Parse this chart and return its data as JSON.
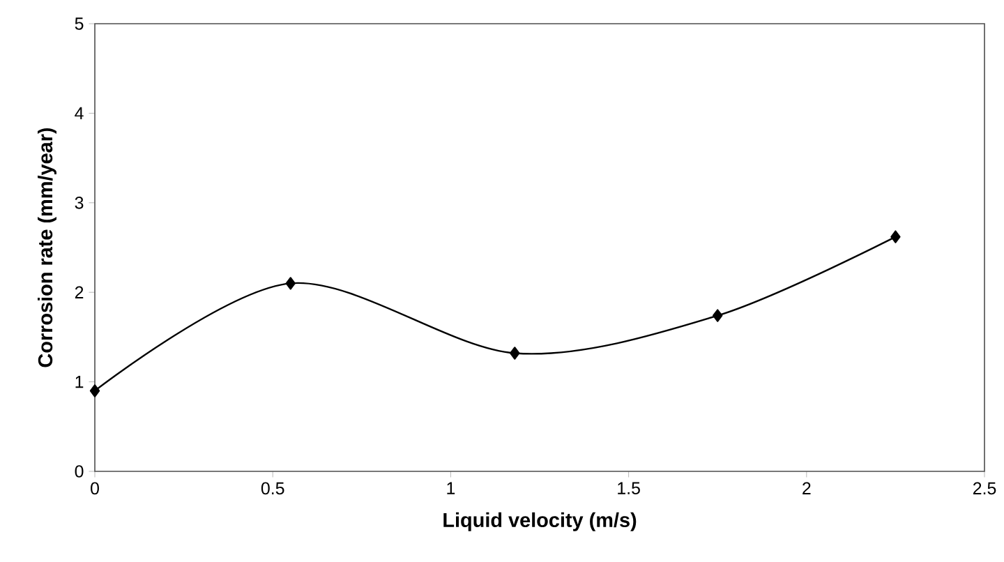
{
  "chart_data": {
    "type": "line",
    "xlabel": "Liquid velocity (m/s)",
    "ylabel": "Corrosion rate (mm/year)",
    "x": [
      0,
      0.55,
      1.18,
      1.75,
      2.25
    ],
    "series": [
      {
        "color": "#000000",
        "values": [
          0.9,
          2.1,
          1.32,
          1.74,
          2.62
        ]
      }
    ],
    "xlim": [
      0,
      2.5
    ],
    "xticks": [
      0,
      0.5,
      1,
      1.5,
      2,
      2.5
    ],
    "ylim": [
      0,
      5
    ],
    "yticks": [
      0,
      1,
      2,
      3,
      4,
      5
    ],
    "marker": "diamond",
    "line_style": "solid"
  }
}
